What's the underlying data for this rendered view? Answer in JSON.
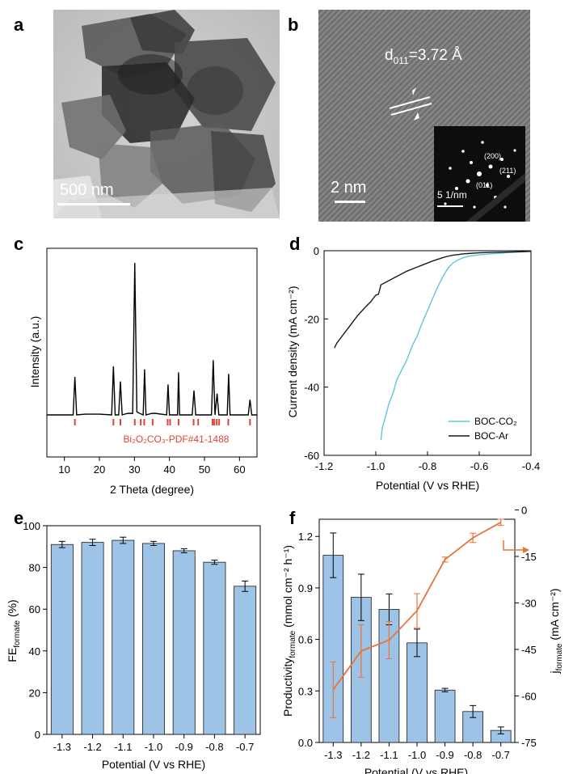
{
  "panels": {
    "a": {
      "letter": "a",
      "scale_label": "500 nm"
    },
    "b": {
      "letter": "b",
      "d_label_main": "d",
      "d_label_sub": "011",
      "d_label_rest": "=3.72 Å",
      "scale_label": "2 nm",
      "inset_scale_label": "5 1/nm",
      "inset_labels": [
        "(200)",
        "(211)",
        "(011)"
      ]
    },
    "c": {
      "letter": "c",
      "reference_label": "Bi₂O₂CO₃-PDF#41-1488"
    },
    "d": {
      "letter": "d"
    },
    "e": {
      "letter": "e"
    },
    "f": {
      "letter": "f"
    }
  },
  "chart_data": [
    {
      "id": "c",
      "type": "line",
      "xlabel": "2 Theta (degree)",
      "ylabel": "Intensity (a.u.)",
      "xlim": [
        5,
        65
      ],
      "xticks": [
        "10",
        "20",
        "30",
        "40",
        "50",
        "60"
      ],
      "series": [
        {
          "x": [
            5,
            10,
            12.5,
            13,
            13.5,
            16,
            20,
            23.5,
            24,
            24.5,
            25.5,
            26,
            26.5,
            28,
            29.5,
            30.1,
            30.7,
            31.5,
            32.5,
            32.9,
            33.3,
            35,
            36,
            39.2,
            39.6,
            40,
            41.5,
            42.3,
            42.6,
            42.9,
            44,
            46.5,
            47,
            47.5,
            50,
            52,
            52.5,
            53,
            53.6,
            54.1,
            55,
            56.5,
            56.9,
            57.3,
            60,
            62.5,
            63,
            63.5,
            65
          ],
          "y": [
            0,
            0,
            0,
            25,
            0,
            0.5,
            0.5,
            0,
            32,
            0,
            0,
            22,
            0,
            1,
            1,
            100,
            2,
            1,
            0,
            30,
            0,
            1,
            1,
            0,
            20,
            0,
            0,
            0,
            28,
            0,
            0,
            0,
            16,
            0,
            0,
            0,
            36,
            0,
            14,
            0,
            0,
            0,
            27,
            0,
            0,
            0,
            10,
            0,
            0
          ]
        }
      ],
      "reference_peaks": [
        13.0,
        24.0,
        26.0,
        30.1,
        31.8,
        32.8,
        35.2,
        39.5,
        40.2,
        42.6,
        46.9,
        48.2,
        52.3,
        52.8,
        53.5,
        54.2,
        56.8,
        63.0
      ]
    },
    {
      "id": "d",
      "type": "line",
      "xlabel": "Potential (V vs RHE)",
      "ylabel": "Current density (mA cm⁻²)",
      "xlim": [
        -1.2,
        -0.4
      ],
      "ylim": [
        -60,
        0
      ],
      "xticks": [
        "-1.2",
        "-1.0",
        "-0.8",
        "-0.6",
        "-0.4"
      ],
      "yticks": [
        "-60",
        "-40",
        "-20",
        "0"
      ],
      "series": [
        {
          "name": "BOC-CO₂",
          "color": "#5ec8dc",
          "x": [
            -0.98,
            -0.975,
            -0.96,
            -0.95,
            -0.93,
            -0.92,
            -0.9,
            -0.88,
            -0.86,
            -0.84,
            -0.82,
            -0.8,
            -0.78,
            -0.76,
            -0.74,
            -0.72,
            -0.7,
            -0.68,
            -0.66,
            -0.64,
            -0.6,
            -0.55,
            -0.5,
            -0.45,
            -0.4
          ],
          "y": [
            -55.5,
            -52,
            -48,
            -45,
            -41,
            -38,
            -35,
            -32,
            -28,
            -25,
            -21,
            -17.5,
            -14,
            -10.5,
            -7.5,
            -5,
            -3.5,
            -2.6,
            -2.0,
            -1.6,
            -1.2,
            -0.9,
            -0.6,
            -0.4,
            -0.2
          ]
        },
        {
          "name": "BOC-Ar",
          "color": "#1a1a1a",
          "x": [
            -1.16,
            -1.15,
            -1.13,
            -1.1,
            -1.07,
            -1.04,
            -1.02,
            -1.0,
            -0.99,
            -0.98,
            -0.96,
            -0.94,
            -0.92,
            -0.9,
            -0.88,
            -0.86,
            -0.84,
            -0.82,
            -0.8,
            -0.78,
            -0.76,
            -0.74,
            -0.72,
            -0.7,
            -0.68,
            -0.66,
            -0.64,
            -0.6,
            -0.55,
            -0.5,
            -0.45,
            -0.4
          ],
          "y": [
            -28.5,
            -27,
            -25,
            -22,
            -19,
            -16.5,
            -15,
            -13,
            -12.8,
            -10,
            -9.2,
            -8.4,
            -7.6,
            -6.8,
            -6.0,
            -5.4,
            -4.8,
            -4.2,
            -3.6,
            -3.0,
            -2.5,
            -2.0,
            -1.6,
            -1.3,
            -1.1,
            -0.9,
            -0.8,
            -0.6,
            -0.5,
            -0.4,
            -0.3,
            -0.2
          ]
        }
      ]
    },
    {
      "id": "e",
      "type": "bar",
      "xlabel": "Potential (V vs RHE)",
      "ylabel_main": "FE",
      "ylabel_sub": "formate",
      "ylabel_unit": " (%)",
      "ylim": [
        0,
        100
      ],
      "yticks": [
        "0",
        "20",
        "40",
        "60",
        "80",
        "100"
      ],
      "categories": [
        "-1.3",
        "-1.2",
        "-1.1",
        "-1.0",
        "-0.9",
        "-0.8",
        "-0.7"
      ],
      "values": [
        91,
        92,
        93,
        91.5,
        88,
        82.5,
        71
      ],
      "errors": [
        1.5,
        1.5,
        1.5,
        1,
        1,
        1,
        2.5
      ],
      "bar_color": "#9dc3e6"
    },
    {
      "id": "f",
      "type": "bar",
      "xlabel": "Potential (V vs RHE)",
      "ylabel_left_main": "Productivity",
      "ylabel_left_sub": "formate",
      "ylabel_left_unit": " (mmol cm⁻² h⁻¹)",
      "ylabel_right_main": "j",
      "ylabel_right_sub": "formate",
      "ylabel_right_unit": " (mA cm⁻²)",
      "ylim_left": [
        0,
        1.3
      ],
      "ylim_right": [
        -75,
        -3
      ],
      "yticks_left": [
        "0.0",
        "0.3",
        "0.6",
        "0.9",
        "1.2"
      ],
      "yticks_right": [
        "-75",
        "-60",
        "-45",
        "-30",
        "-15",
        "0"
      ],
      "categories": [
        "-1.3",
        "-1.2",
        "-1.1",
        "-1.0",
        "-0.9",
        "-0.8",
        "-0.7"
      ],
      "series": [
        {
          "kind": "bar",
          "values": [
            1.09,
            0.845,
            0.775,
            0.58,
            0.305,
            0.18,
            0.07
          ],
          "errors": [
            0.13,
            0.135,
            0.09,
            0.08,
            0.01,
            0.035,
            0.02
          ],
          "color": "#9dc3e6"
        },
        {
          "kind": "line",
          "values": [
            -58,
            -45.5,
            -42,
            -32.5,
            -16,
            -9,
            -4
          ],
          "errors": [
            9,
            8.5,
            6,
            5.5,
            0.8,
            1.5,
            1
          ],
          "color": "#e8743b"
        }
      ]
    }
  ]
}
